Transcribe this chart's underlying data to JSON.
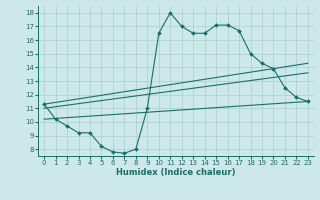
{
  "xlabel": "Humidex (Indice chaleur)",
  "bg_color": "#cce8e8",
  "line_color": "#1a6e6a",
  "grid_color": "#aacfcf",
  "xlim": [
    -0.5,
    23.5
  ],
  "ylim": [
    7.5,
    18.5
  ],
  "xticks": [
    0,
    1,
    2,
    3,
    4,
    5,
    6,
    7,
    8,
    9,
    10,
    11,
    12,
    13,
    14,
    15,
    16,
    17,
    18,
    19,
    20,
    21,
    22,
    23
  ],
  "yticks": [
    8,
    9,
    10,
    11,
    12,
    13,
    14,
    15,
    16,
    17,
    18
  ],
  "line1_x": [
    0,
    1,
    2,
    3,
    4,
    5,
    6,
    7,
    8,
    9,
    10,
    11,
    12,
    13,
    14,
    15,
    16,
    17,
    18,
    19,
    20,
    21,
    22,
    23
  ],
  "line1_y": [
    11.3,
    10.2,
    9.7,
    9.2,
    9.2,
    8.2,
    7.8,
    7.7,
    8.0,
    11.0,
    16.5,
    18.0,
    17.0,
    16.5,
    16.5,
    17.1,
    17.1,
    16.7,
    15.0,
    14.3,
    13.9,
    12.5,
    11.8,
    11.5
  ],
  "line2_x": [
    0,
    23
  ],
  "line2_y": [
    11.3,
    14.3
  ],
  "line3_x": [
    0,
    23
  ],
  "line3_y": [
    11.0,
    13.6
  ],
  "line4_x": [
    0,
    23
  ],
  "line4_y": [
    10.2,
    11.5
  ]
}
